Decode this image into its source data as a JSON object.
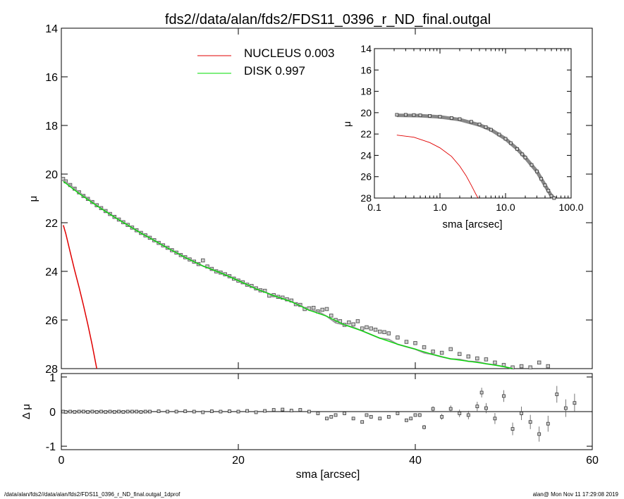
{
  "title": "fds2//data/alan/fds2/FDS11_0396_r_ND_final.outgal",
  "footer_left": "/data/alan/fds2//data/alan/fds2/FDS11_0396_r_ND_final.outgal_1dprof",
  "footer_right": "alan@  Mon Nov 11 17:29:08 2019",
  "legend": [
    {
      "label": "NUCLEUS  0.003",
      "color": "#e00000"
    },
    {
      "label": "DISK  0.997",
      "color": "#00dd00"
    }
  ],
  "chart_data": [
    {
      "id": "main",
      "type": "scatter",
      "xlabel": "",
      "ylabel": "μ",
      "xlim": [
        0,
        60
      ],
      "ylim": [
        28,
        14
      ],
      "y_inverted": true,
      "xticks": [
        0,
        20,
        40,
        60
      ],
      "yticks": [
        14,
        16,
        18,
        20,
        22,
        24,
        26,
        28
      ],
      "observed_points": [
        [
          0.2,
          20.2
        ],
        [
          0.5,
          20.3
        ],
        [
          1.0,
          20.45
        ],
        [
          1.5,
          20.6
        ],
        [
          2.0,
          20.75
        ],
        [
          2.5,
          20.9
        ],
        [
          3.0,
          21.02
        ],
        [
          3.5,
          21.15
        ],
        [
          4.0,
          21.28
        ],
        [
          4.5,
          21.4
        ],
        [
          5.0,
          21.52
        ],
        [
          5.5,
          21.64
        ],
        [
          6.0,
          21.76
        ],
        [
          6.5,
          21.87
        ],
        [
          7.0,
          21.98
        ],
        [
          7.5,
          22.09
        ],
        [
          8.0,
          22.2
        ],
        [
          8.5,
          22.31
        ],
        [
          9.0,
          22.42
        ],
        [
          9.5,
          22.52
        ],
        [
          10.0,
          22.62
        ],
        [
          10.5,
          22.72
        ],
        [
          11.0,
          22.83
        ],
        [
          11.5,
          22.93
        ],
        [
          12.0,
          23.03
        ],
        [
          12.5,
          23.13
        ],
        [
          13.0,
          23.23
        ],
        [
          13.5,
          23.33
        ],
        [
          14.0,
          23.42
        ],
        [
          14.5,
          23.51
        ],
        [
          15.0,
          23.6
        ],
        [
          15.5,
          23.7
        ],
        [
          16.0,
          23.55
        ],
        [
          16.5,
          23.8
        ],
        [
          17.0,
          23.9
        ],
        [
          17.5,
          24.0
        ],
        [
          18.0,
          24.05
        ],
        [
          18.5,
          24.12
        ],
        [
          19.0,
          24.2
        ],
        [
          19.5,
          24.3
        ],
        [
          20.0,
          24.38
        ],
        [
          20.5,
          24.45
        ],
        [
          21.0,
          24.55
        ],
        [
          21.5,
          24.6
        ],
        [
          22.0,
          24.7
        ],
        [
          22.5,
          24.78
        ],
        [
          23.0,
          24.8
        ],
        [
          23.5,
          25.0
        ],
        [
          24.0,
          24.98
        ],
        [
          24.5,
          25.05
        ],
        [
          25.0,
          25.08
        ],
        [
          25.5,
          25.15
        ],
        [
          26.0,
          25.2
        ],
        [
          26.5,
          25.35
        ],
        [
          27.0,
          25.38
        ],
        [
          27.5,
          25.55
        ],
        [
          28.0,
          25.52
        ],
        [
          28.5,
          25.5
        ],
        [
          29.0,
          25.65
        ],
        [
          29.5,
          25.58
        ],
        [
          30.0,
          25.55
        ],
        [
          30.5,
          25.82
        ],
        [
          31.0,
          26.0
        ],
        [
          31.5,
          26.05
        ],
        [
          32.0,
          26.2
        ],
        [
          32.5,
          26.1
        ],
        [
          33.0,
          26.18
        ],
        [
          33.5,
          26.05
        ],
        [
          34.0,
          26.35
        ],
        [
          34.5,
          26.3
        ],
        [
          35.0,
          26.35
        ],
        [
          35.5,
          26.4
        ],
        [
          36.0,
          26.48
        ],
        [
          36.5,
          26.5
        ],
        [
          37.0,
          26.55
        ],
        [
          38.0,
          26.72
        ],
        [
          39.0,
          26.9
        ],
        [
          40.0,
          26.95
        ],
        [
          41.0,
          27.12
        ],
        [
          42.0,
          27.3
        ],
        [
          43.0,
          27.35
        ],
        [
          44.0,
          27.2
        ],
        [
          45.0,
          27.4
        ],
        [
          46.0,
          27.5
        ],
        [
          47.0,
          27.58
        ],
        [
          48.0,
          27.62
        ],
        [
          49.0,
          27.75
        ],
        [
          50.0,
          27.85
        ],
        [
          51.0,
          27.95
        ],
        [
          52.0,
          27.9
        ],
        [
          53.0,
          27.95
        ],
        [
          54.0,
          27.75
        ],
        [
          55.0,
          27.9
        ]
      ],
      "model_total_curve": [
        [
          0.2,
          20.25
        ],
        [
          1.0,
          20.45
        ],
        [
          2.0,
          20.75
        ],
        [
          3.0,
          21.0
        ],
        [
          4.0,
          21.28
        ],
        [
          5.0,
          21.52
        ],
        [
          6.0,
          21.76
        ],
        [
          7.0,
          21.98
        ],
        [
          8.0,
          22.2
        ],
        [
          9.0,
          22.42
        ],
        [
          10.0,
          22.62
        ],
        [
          11.0,
          22.83
        ],
        [
          12.0,
          23.03
        ],
        [
          13.0,
          23.23
        ],
        [
          14.0,
          23.42
        ],
        [
          15.0,
          23.6
        ],
        [
          16.0,
          23.78
        ],
        [
          17.0,
          23.92
        ],
        [
          18.0,
          24.06
        ],
        [
          19.0,
          24.2
        ],
        [
          20.0,
          24.38
        ],
        [
          21.0,
          24.55
        ],
        [
          22.0,
          24.72
        ],
        [
          23.0,
          24.85
        ],
        [
          24.0,
          25.0
        ],
        [
          25.0,
          25.12
        ],
        [
          26.0,
          25.25
        ],
        [
          27.0,
          25.4
        ],
        [
          28.0,
          25.6
        ],
        [
          29.0,
          25.65
        ],
        [
          30.0,
          25.85
        ],
        [
          31.0,
          26.12
        ],
        [
          32.0,
          26.2
        ],
        [
          33.0,
          26.3
        ],
        [
          34.0,
          26.45
        ],
        [
          35.0,
          26.6
        ],
        [
          36.0,
          26.75
        ],
        [
          37.0,
          26.8
        ],
        [
          38.0,
          27.0
        ],
        [
          39.0,
          27.1
        ],
        [
          40.0,
          27.2
        ],
        [
          41.0,
          27.35
        ],
        [
          42.0,
          27.42
        ],
        [
          43.0,
          27.52
        ],
        [
          44.0,
          27.6
        ],
        [
          45.0,
          27.62
        ],
        [
          46.0,
          27.7
        ],
        [
          47.0,
          27.72
        ],
        [
          48.0,
          27.8
        ],
        [
          49.0,
          27.85
        ],
        [
          50.0,
          27.92
        ],
        [
          51.0,
          28.0
        ]
      ],
      "nucleus_curve": [
        [
          0.22,
          22.1
        ],
        [
          0.5,
          22.45
        ],
        [
          1.0,
          23.2
        ],
        [
          1.5,
          23.95
        ],
        [
          2.0,
          24.65
        ],
        [
          2.5,
          25.4
        ],
        [
          3.0,
          26.2
        ],
        [
          3.5,
          27.05
        ],
        [
          4.0,
          28.0
        ]
      ],
      "disk_curve": [
        [
          0.22,
          20.3
        ],
        [
          1.0,
          20.52
        ],
        [
          2.0,
          20.8
        ],
        [
          3.0,
          21.05
        ],
        [
          4.0,
          21.3
        ],
        [
          5.0,
          21.54
        ],
        [
          6.0,
          21.77
        ],
        [
          7.0,
          21.99
        ],
        [
          8.0,
          22.21
        ],
        [
          9.0,
          22.43
        ],
        [
          10.0,
          22.63
        ],
        [
          12.0,
          23.04
        ],
        [
          14.0,
          23.43
        ],
        [
          16.0,
          23.78
        ],
        [
          18.0,
          24.06
        ],
        [
          20.0,
          24.38
        ],
        [
          22.0,
          24.72
        ],
        [
          24.0,
          25.0
        ],
        [
          26.0,
          25.25
        ],
        [
          28.0,
          25.6
        ],
        [
          30.0,
          25.85
        ],
        [
          32.0,
          26.2
        ],
        [
          34.0,
          26.45
        ],
        [
          36.0,
          26.75
        ],
        [
          38.0,
          27.0
        ],
        [
          40.0,
          27.2
        ],
        [
          42.0,
          27.42
        ],
        [
          44.0,
          27.6
        ],
        [
          46.0,
          27.7
        ],
        [
          48.0,
          27.8
        ],
        [
          50.0,
          27.92
        ],
        [
          51.0,
          28.0
        ]
      ]
    },
    {
      "id": "inset",
      "type": "scatter",
      "xlabel": "sma [arcsec]",
      "ylabel": "μ",
      "xscale": "log",
      "xlim": [
        0.1,
        100
      ],
      "ylim": [
        28,
        14
      ],
      "y_inverted": true,
      "xticks": [
        0.1,
        1,
        10,
        100
      ],
      "xtick_labels": [
        "0.1",
        "1.0",
        "10.0",
        "100.0"
      ],
      "yticks": [
        14,
        16,
        18,
        20,
        22,
        24,
        26,
        28
      ],
      "observed_points": [
        [
          0.22,
          20.2
        ],
        [
          0.3,
          20.2
        ],
        [
          0.4,
          20.22
        ],
        [
          0.5,
          20.25
        ],
        [
          0.7,
          20.3
        ],
        [
          1.0,
          20.38
        ],
        [
          1.5,
          20.5
        ],
        [
          2.0,
          20.6
        ],
        [
          3.0,
          20.85
        ],
        [
          4.0,
          21.1
        ],
        [
          5.0,
          21.35
        ],
        [
          6.0,
          21.6
        ],
        [
          8.0,
          22.05
        ],
        [
          10.0,
          22.45
        ],
        [
          12.0,
          22.85
        ],
        [
          15.0,
          23.4
        ],
        [
          18.0,
          23.9
        ],
        [
          20.0,
          24.2
        ],
        [
          25.0,
          24.9
        ],
        [
          30.0,
          25.5
        ],
        [
          35.0,
          26.2
        ],
        [
          40.0,
          26.8
        ],
        [
          45.0,
          27.3
        ],
        [
          50.0,
          27.8
        ],
        [
          55.0,
          28.0
        ]
      ],
      "nucleus_curve": [
        [
          0.22,
          22.1
        ],
        [
          0.4,
          22.3
        ],
        [
          0.7,
          22.8
        ],
        [
          1.0,
          23.3
        ],
        [
          1.5,
          24.1
        ],
        [
          2.0,
          25.0
        ],
        [
          2.5,
          25.9
        ],
        [
          3.0,
          26.8
        ],
        [
          3.5,
          27.6
        ],
        [
          3.8,
          28.0
        ]
      ],
      "total_curve": [
        [
          0.22,
          20.25
        ],
        [
          0.5,
          20.28
        ],
        [
          1.0,
          20.4
        ],
        [
          2.0,
          20.65
        ],
        [
          4.0,
          21.15
        ],
        [
          6.0,
          21.6
        ],
        [
          10.0,
          22.45
        ],
        [
          15.0,
          23.4
        ],
        [
          20.0,
          24.2
        ],
        [
          30.0,
          25.5
        ],
        [
          40.0,
          26.8
        ],
        [
          50.0,
          27.8
        ],
        [
          55.0,
          28.0
        ]
      ]
    },
    {
      "id": "residual",
      "type": "scatter",
      "xlabel": "sma [arcsec]",
      "ylabel": "Δ μ",
      "xlim": [
        0,
        60
      ],
      "ylim": [
        -1.1,
        1.1
      ],
      "xticks": [
        0,
        20,
        40,
        60
      ],
      "yticks": [
        -1,
        0,
        1
      ],
      "points": [
        [
          0.2,
          0.0
        ],
        [
          0.5,
          -0.01
        ],
        [
          1.0,
          0.0
        ],
        [
          1.5,
          -0.01
        ],
        [
          2.0,
          0.0
        ],
        [
          2.5,
          0.0
        ],
        [
          3.0,
          -0.01
        ],
        [
          3.5,
          0.0
        ],
        [
          4.0,
          -0.01
        ],
        [
          4.5,
          0.0
        ],
        [
          5.0,
          -0.01
        ],
        [
          5.5,
          0.0
        ],
        [
          6.0,
          -0.01
        ],
        [
          6.5,
          0.0
        ],
        [
          7.0,
          -0.01
        ],
        [
          7.5,
          0.0
        ],
        [
          8.0,
          0.0
        ],
        [
          8.5,
          0.0
        ],
        [
          9.0,
          -0.01
        ],
        [
          9.5,
          0.0
        ],
        [
          10.0,
          0.0
        ],
        [
          11.0,
          0.01
        ],
        [
          12.0,
          0.0
        ],
        [
          13.0,
          0.0
        ],
        [
          14.0,
          0.01
        ],
        [
          15.0,
          0.0
        ],
        [
          16.0,
          -0.02
        ],
        [
          17.0,
          0.01
        ],
        [
          18.0,
          0.0
        ],
        [
          19.0,
          0.01
        ],
        [
          20.0,
          0.0
        ],
        [
          21.0,
          0.02
        ],
        [
          22.0,
          -0.02
        ],
        [
          23.0,
          0.02
        ],
        [
          24.0,
          0.05
        ],
        [
          25.0,
          0.06
        ],
        [
          26.0,
          0.03
        ],
        [
          27.0,
          0.05
        ],
        [
          28.0,
          0.0
        ],
        [
          29.0,
          -0.05
        ],
        [
          30.0,
          -0.2
        ],
        [
          30.5,
          -0.15
        ],
        [
          31.0,
          -0.1
        ],
        [
          32.0,
          -0.05
        ],
        [
          33.0,
          -0.2
        ],
        [
          34.0,
          -0.3
        ],
        [
          34.5,
          -0.1
        ],
        [
          35.0,
          -0.15
        ],
        [
          36.0,
          -0.2
        ],
        [
          37.0,
          -0.15
        ],
        [
          38.0,
          -0.05
        ],
        [
          39.0,
          -0.25
        ],
        [
          39.5,
          -0.2
        ],
        [
          40.0,
          -0.1
        ],
        [
          40.5,
          -0.1
        ],
        [
          41.0,
          -0.45
        ],
        [
          42.0,
          0.08
        ],
        [
          43.0,
          -0.15
        ],
        [
          44.0,
          0.08
        ],
        [
          45.0,
          -0.05
        ],
        [
          46.0,
          -0.1
        ],
        [
          47.0,
          0.15
        ],
        [
          47.5,
          0.55
        ],
        [
          48.0,
          0.1
        ],
        [
          49.0,
          -0.2
        ],
        [
          50.0,
          0.45
        ],
        [
          51.0,
          -0.5
        ],
        [
          52.0,
          -0.05
        ],
        [
          53.0,
          -0.3
        ],
        [
          54.0,
          -0.65
        ],
        [
          55.0,
          -0.35
        ],
        [
          56.0,
          0.5
        ],
        [
          57.0,
          0.1
        ],
        [
          58.0,
          0.25
        ]
      ]
    }
  ]
}
